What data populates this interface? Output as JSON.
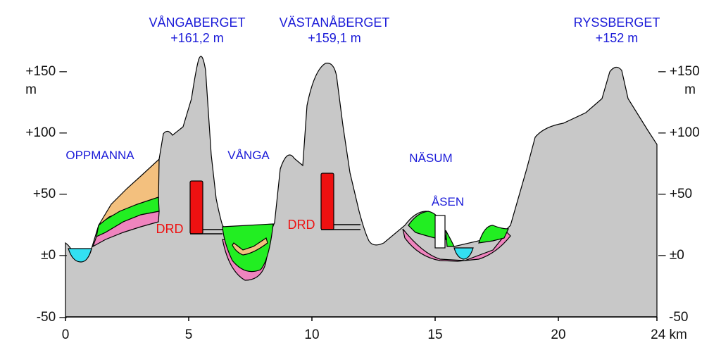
{
  "colors": {
    "bedrock": "#c8c8c8",
    "water": "#33e0f2",
    "green_layer": "#22ee22",
    "pink_layer": "#ef84be",
    "orange_layer": "#f3c07e",
    "drd": "#ee1111",
    "peak_label": "#1a1ad8",
    "place_label": "#1a1ad8",
    "drd_label": "#ee1111"
  },
  "peaks": [
    {
      "name": "VÅNGABERGET",
      "height": "+161,2 m"
    },
    {
      "name": "VÄSTANÅBERGET",
      "height": "+159,1 m"
    },
    {
      "name": "RYSSBERGET",
      "height": "+152 m"
    }
  ],
  "places": [
    "OPPMANNA",
    "VÅNGA",
    "NÄSUM",
    "ÅSEN"
  ],
  "drd_label": "DRD",
  "y_axis": {
    "left_ticks": [
      "+150 –",
      "+100 –",
      "+50 –",
      "±0 –",
      "-50 –"
    ],
    "right_ticks": [
      "– +150",
      "– +100",
      "– +50",
      "– ±0",
      "-50"
    ],
    "unit": "m"
  },
  "x_axis": {
    "ticks": [
      "0",
      "5",
      "10",
      "15",
      "20",
      "24 km"
    ]
  }
}
